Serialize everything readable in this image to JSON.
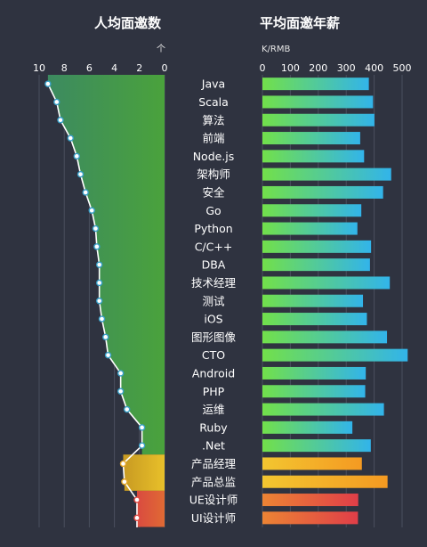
{
  "titles": {
    "left": "人均面邀数",
    "right": "平均面邀年薪",
    "left_arrow": "个",
    "right_unit": "K/RMB"
  },
  "chart_data": [
    {
      "type": "area",
      "title": "人均面邀数",
      "xlabel": "个",
      "orientation": "horizontal-reversed",
      "xlim": [
        10,
        0
      ],
      "ticks": [
        10,
        8,
        6,
        4,
        2,
        0
      ],
      "grid": true,
      "categories": [
        "Java",
        "Scala",
        "算法",
        "前端",
        "Node.js",
        "架构师",
        "安全",
        "Go",
        "Python",
        "C/C++",
        "DBA",
        "技术经理",
        "测试",
        "iOS",
        "图形图像",
        "CTO",
        "Android",
        "PHP",
        "运维",
        "Ruby",
        ".Net",
        "产品经理",
        "产品总监",
        "UE设计师",
        "UI设计师"
      ],
      "values": [
        9.3,
        8.6,
        8.3,
        7.5,
        7.0,
        6.7,
        6.3,
        5.8,
        5.5,
        5.4,
        5.2,
        5.2,
        5.2,
        5.0,
        4.7,
        4.5,
        3.5,
        3.5,
        3.0,
        1.8,
        1.8,
        3.3,
        3.2,
        2.2,
        2.2
      ],
      "segment_colors": {
        "tech": "#4a9a3c",
        "product": "#d8a820",
        "design": "#e05a3c"
      }
    },
    {
      "type": "bar",
      "title": "平均面邀年薪",
      "ylabel": "K/RMB",
      "xlim": [
        0,
        530
      ],
      "ticks": [
        0,
        100,
        200,
        300,
        400,
        500
      ],
      "grid": true,
      "categories": [
        "Java",
        "Scala",
        "算法",
        "前端",
        "Node.js",
        "架构师",
        "安全",
        "Go",
        "Python",
        "C/C++",
        "DBA",
        "技术经理",
        "测试",
        "iOS",
        "图形图像",
        "CTO",
        "Android",
        "PHP",
        "运维",
        "Ruby",
        ".Net",
        "产品经理",
        "产品总监",
        "UE设计师",
        "UI设计师"
      ],
      "values": [
        381,
        396,
        401,
        350,
        364,
        461,
        432,
        354,
        340,
        389,
        385,
        456,
        360,
        374,
        446,
        520,
        370,
        368,
        435,
        322,
        388,
        356,
        448,
        343,
        342
      ],
      "colors": {
        "tech_start": "#72e04a",
        "tech_end": "#32b4ea",
        "product_start": "#f3c630",
        "product_end": "#f49a22",
        "design_start": "#ec8434",
        "design_end": "#e03e48"
      }
    }
  ]
}
